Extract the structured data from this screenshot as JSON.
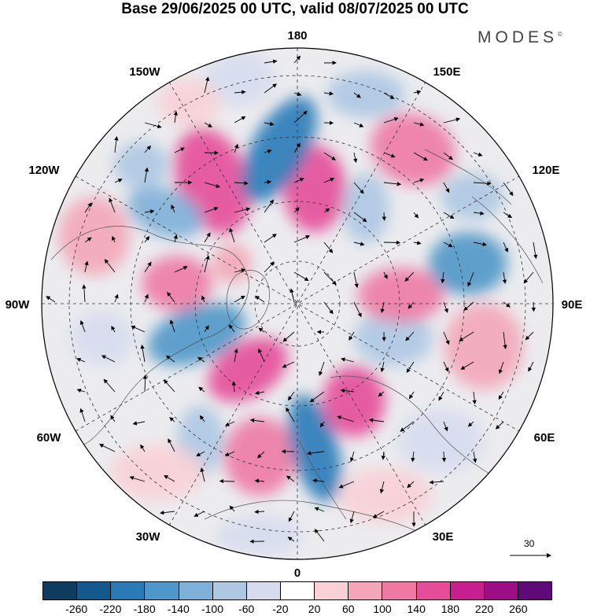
{
  "title": "Base 29/06/2025 00 UTC, valid 08/07/2025 00 UTC",
  "brand": "MODES",
  "brand_mark": "©",
  "longitude_labels": {
    "top": "180",
    "bottom": "0",
    "left": "90W",
    "right": "90E",
    "upper_left_1": "150W",
    "upper_left_2": "120W",
    "upper_right_1": "150E",
    "upper_right_2": "120E",
    "lower_left_1": "60W",
    "lower_left_2": "30W",
    "lower_right_1": "60E",
    "lower_right_2": "30E"
  },
  "wind_scale": {
    "value": "30"
  },
  "colorbar": {
    "colors": [
      "#0e3b5e",
      "#14598c",
      "#2a7ab8",
      "#4f97c8",
      "#7fb0d8",
      "#aec8e3",
      "#d6dcee",
      "#ffffff",
      "#f8d0d6",
      "#f3a6b8",
      "#ee7aa4",
      "#e54c9a",
      "#c81f8e",
      "#9c0d86",
      "#5e0a78"
    ],
    "ticks": [
      "-260",
      "-220",
      "-180",
      "-140",
      "-100",
      "-60",
      "-20",
      "20",
      "60",
      "100",
      "140",
      "180",
      "220",
      "260"
    ]
  }
}
